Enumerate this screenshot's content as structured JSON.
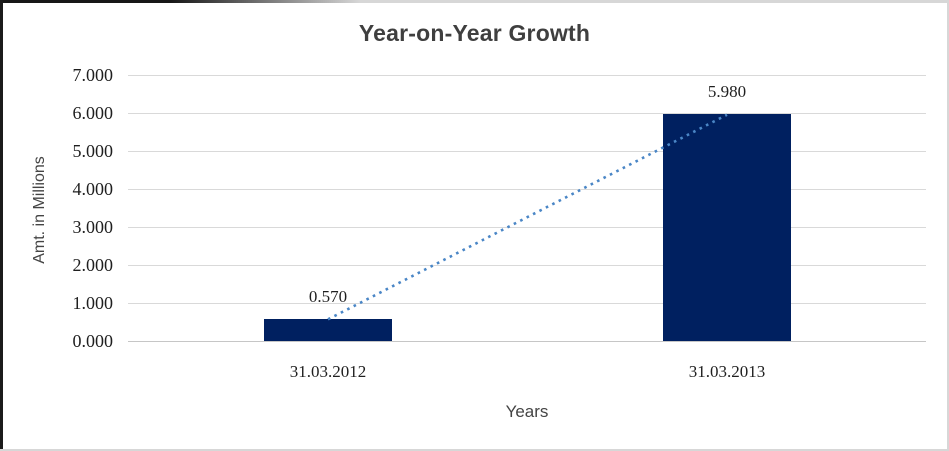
{
  "chart_data": {
    "type": "bar",
    "title": "Year-on-Year Growth",
    "categories": [
      "31.03.2012",
      "31.03.2013"
    ],
    "values": [
      0.57,
      5.98
    ],
    "value_labels": [
      "0.570",
      "5.980"
    ],
    "xlabel": "Years",
    "ylabel": "Amt. in Millions",
    "ylim": [
      0,
      7
    ],
    "y_tick_step": 1,
    "y_tick_labels": [
      "0.000",
      "1.000",
      "2.000",
      "3.000",
      "4.000",
      "5.000",
      "6.000",
      "7.000"
    ],
    "grid": true,
    "legend": false,
    "trendline": {
      "style": "dotted",
      "from_value": 0.57,
      "to_value": 5.98
    },
    "colors": {
      "bar": "#002060",
      "trendline": "#4a86c6",
      "gridline": "#d9d9d9",
      "title_text": "#3f3f3f",
      "tick_text": "#1f1f1f"
    }
  }
}
